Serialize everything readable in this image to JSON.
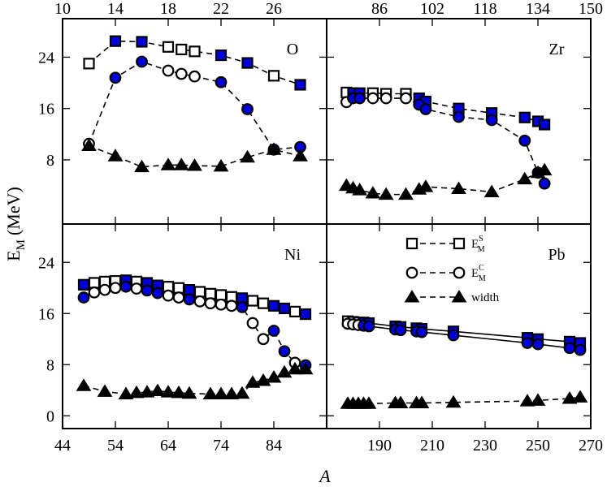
{
  "chart_data": {
    "type": "scatter",
    "y_axis_label": "E",
    "y_axis_label_sub": "M",
    "y_axis_label_units": "(MeV)",
    "x_axis_label": "A",
    "ylim": [
      -2,
      30
    ],
    "colors": {
      "filled": "#0000dd",
      "open": "#ffffff",
      "stroke": "#000000"
    },
    "legend": [
      {
        "main": "E",
        "sup": "S",
        "sub": "M",
        "symbol": "square"
      },
      {
        "main": "E",
        "sup": "C",
        "sub": "M",
        "symbol": "circle"
      },
      {
        "main": "width",
        "symbol": "triangle"
      }
    ],
    "panels": [
      {
        "id": "O",
        "label": "O",
        "row": 0,
        "col": 0,
        "xlim": [
          10,
          30
        ],
        "xaxis": "top",
        "xticks": [
          10,
          14,
          18,
          22,
          26
        ],
        "yticks": [
          8,
          16,
          24
        ],
        "series": [
          {
            "name": "E_M^S",
            "symbol": "square",
            "line": "dashed",
            "x": [
              12,
              14,
              16,
              18,
              19,
              20,
              22,
              24,
              26,
              28
            ],
            "y": [
              23,
              26.5,
              26.4,
              25.6,
              25.2,
              24.9,
              24.3,
              23.1,
              21.1,
              19.7
            ],
            "filled": [
              false,
              true,
              true,
              false,
              false,
              false,
              true,
              true,
              false,
              true
            ]
          },
          {
            "name": "E_M^C",
            "symbol": "circle",
            "line": "dashed",
            "x": [
              12,
              14,
              16,
              18,
              19,
              20,
              22,
              24,
              26,
              28
            ],
            "y": [
              10.5,
              20.8,
              23.3,
              21.9,
              21.4,
              21.0,
              20.1,
              15.9,
              9.6,
              10.0
            ],
            "filled": [
              false,
              true,
              true,
              false,
              false,
              false,
              true,
              true,
              true,
              true
            ]
          },
          {
            "name": "width",
            "symbol": "triangle",
            "line": "dashed",
            "x": [
              12,
              14,
              16,
              18,
              19,
              20,
              22,
              24,
              26,
              28
            ],
            "y": [
              10.2,
              8.6,
              6.9,
              7.2,
              7.2,
              7.1,
              7.0,
              8.4,
              9.6,
              8.6
            ]
          }
        ]
      },
      {
        "id": "Zr",
        "label": "Zr",
        "row": 0,
        "col": 1,
        "xlim": [
          70,
          150
        ],
        "xaxis": "top",
        "xticks": [
          86,
          102,
          118,
          134,
          150
        ],
        "yticks": [
          8,
          16,
          24
        ],
        "series": [
          {
            "name": "E_M^S",
            "symbol": "square",
            "line": "dashed",
            "x": [
              76,
              78,
              80,
              84,
              88,
              94,
              98,
              100,
              110,
              120,
              130,
              134,
              136
            ],
            "y": [
              18.5,
              18.4,
              18.4,
              18.4,
              18.3,
              18.3,
              17.6,
              17.1,
              16.0,
              15.3,
              14.6,
              14.0,
              13.5
            ],
            "filled": [
              false,
              true,
              true,
              false,
              false,
              false,
              true,
              true,
              true,
              true,
              true,
              true,
              true
            ]
          },
          {
            "name": "E_M^C",
            "symbol": "circle",
            "line": "dashed",
            "x": [
              76,
              78,
              80,
              84,
              88,
              94,
              98,
              100,
              110,
              120,
              130,
              134,
              136
            ],
            "y": [
              17.0,
              17.6,
              17.6,
              17.6,
              17.6,
              17.6,
              16.6,
              15.9,
              14.7,
              14.2,
              11.0,
              6.0,
              4.3
            ],
            "filled": [
              false,
              true,
              true,
              false,
              false,
              false,
              true,
              true,
              true,
              true,
              true,
              true,
              true
            ]
          },
          {
            "name": "width",
            "symbol": "triangle",
            "line": "dashed",
            "x": [
              76,
              78,
              80,
              84,
              88,
              94,
              98,
              100,
              110,
              120,
              130,
              134,
              136
            ],
            "y": [
              4.0,
              3.6,
              3.3,
              2.8,
              2.6,
              2.6,
              3.4,
              3.8,
              3.5,
              3.0,
              5.0,
              6.0,
              6.4
            ]
          }
        ]
      },
      {
        "id": "Ni",
        "label": "Ni",
        "row": 1,
        "col": 0,
        "xlim": [
          44,
          94
        ],
        "xaxis": "bottom",
        "xticks": [
          44,
          54,
          64,
          74,
          84
        ],
        "yticks": [
          0,
          8,
          16,
          24
        ],
        "series": [
          {
            "name": "E_M^S",
            "symbol": "square",
            "line": "dashed",
            "x": [
              48,
              50,
              52,
              54,
              56,
              58,
              60,
              62,
              64,
              66,
              68,
              70,
              72,
              74,
              76,
              78,
              80,
              82,
              84,
              86,
              88,
              90
            ],
            "y": [
              20.5,
              20.8,
              21.0,
              21.1,
              21.2,
              21.0,
              20.8,
              20.4,
              20.2,
              20.0,
              19.7,
              19.4,
              19.1,
              18.9,
              18.6,
              18.4,
              18.0,
              17.6,
              17.2,
              16.8,
              16.3,
              15.9
            ],
            "filled": [
              true,
              false,
              false,
              false,
              true,
              false,
              true,
              true,
              false,
              false,
              true,
              false,
              false,
              false,
              false,
              true,
              false,
              false,
              true,
              true,
              false,
              true
            ]
          },
          {
            "name": "E_M^C",
            "symbol": "circle",
            "line": "dashed",
            "x": [
              48,
              50,
              52,
              54,
              56,
              58,
              60,
              62,
              64,
              66,
              68,
              70,
              72,
              74,
              76,
              78,
              80,
              82,
              84,
              86,
              88,
              90
            ],
            "y": [
              18.5,
              19.3,
              19.7,
              20.0,
              20.2,
              19.9,
              19.6,
              19.2,
              18.8,
              18.5,
              18.2,
              17.9,
              17.6,
              17.4,
              17.2,
              17.0,
              14.5,
              12.0,
              13.3,
              10.1,
              8.3,
              7.9
            ],
            "filled": [
              true,
              false,
              false,
              false,
              true,
              false,
              true,
              true,
              false,
              false,
              true,
              false,
              false,
              false,
              false,
              true,
              false,
              false,
              true,
              true,
              false,
              true
            ]
          },
          {
            "name": "width",
            "symbol": "triangle",
            "line": "dashed",
            "x": [
              48,
              52,
              56,
              58,
              60,
              62,
              64,
              66,
              68,
              72,
              74,
              76,
              78,
              80,
              82,
              84,
              86,
              88,
              90
            ],
            "y": [
              4.7,
              3.8,
              3.4,
              3.6,
              3.7,
              3.9,
              3.7,
              3.6,
              3.5,
              3.4,
              3.4,
              3.4,
              3.5,
              5.2,
              5.5,
              6.0,
              6.8,
              7.3,
              7.3
            ]
          }
        ]
      },
      {
        "id": "Pb",
        "label": "Pb",
        "row": 1,
        "col": 1,
        "xlim": [
          170,
          270
        ],
        "xaxis": "bottom",
        "xticks": [
          190,
          210,
          230,
          250,
          270
        ],
        "yticks": [
          0,
          8,
          16,
          24
        ],
        "series": [
          {
            "name": "E_M^S",
            "symbol": "square",
            "line": "solid",
            "x": [
              178,
              180,
              182,
              184,
              186,
              196,
              198,
              204,
              206,
              218,
              246,
              250,
              262,
              266
            ],
            "y": [
              14.8,
              14.7,
              14.6,
              14.6,
              14.5,
              14.0,
              13.9,
              13.7,
              13.6,
              13.2,
              12.2,
              12.0,
              11.6,
              11.4
            ],
            "filled": [
              false,
              false,
              false,
              true,
              true,
              true,
              true,
              true,
              true,
              true,
              true,
              true,
              true,
              true
            ]
          },
          {
            "name": "E_M^C",
            "symbol": "circle",
            "line": "solid",
            "x": [
              178,
              180,
              182,
              184,
              186,
              196,
              198,
              204,
              206,
              218,
              246,
              250,
              262,
              266
            ],
            "y": [
              14.4,
              14.3,
              14.2,
              14.1,
              14.0,
              13.5,
              13.4,
              13.2,
              13.1,
              12.6,
              11.4,
              11.2,
              10.6,
              10.3
            ],
            "filled": [
              false,
              false,
              false,
              true,
              true,
              true,
              true,
              true,
              true,
              true,
              true,
              true,
              true,
              true
            ]
          },
          {
            "name": "width",
            "symbol": "triangle",
            "line": "dashed",
            "x": [
              178,
              180,
              182,
              184,
              186,
              196,
              198,
              204,
              206,
              218,
              246,
              250,
              262,
              266
            ],
            "y": [
              1.9,
              1.9,
              1.9,
              1.9,
              1.9,
              2.0,
              2.0,
              2.0,
              2.0,
              2.1,
              2.3,
              2.4,
              2.7,
              2.9
            ]
          }
        ]
      }
    ]
  }
}
